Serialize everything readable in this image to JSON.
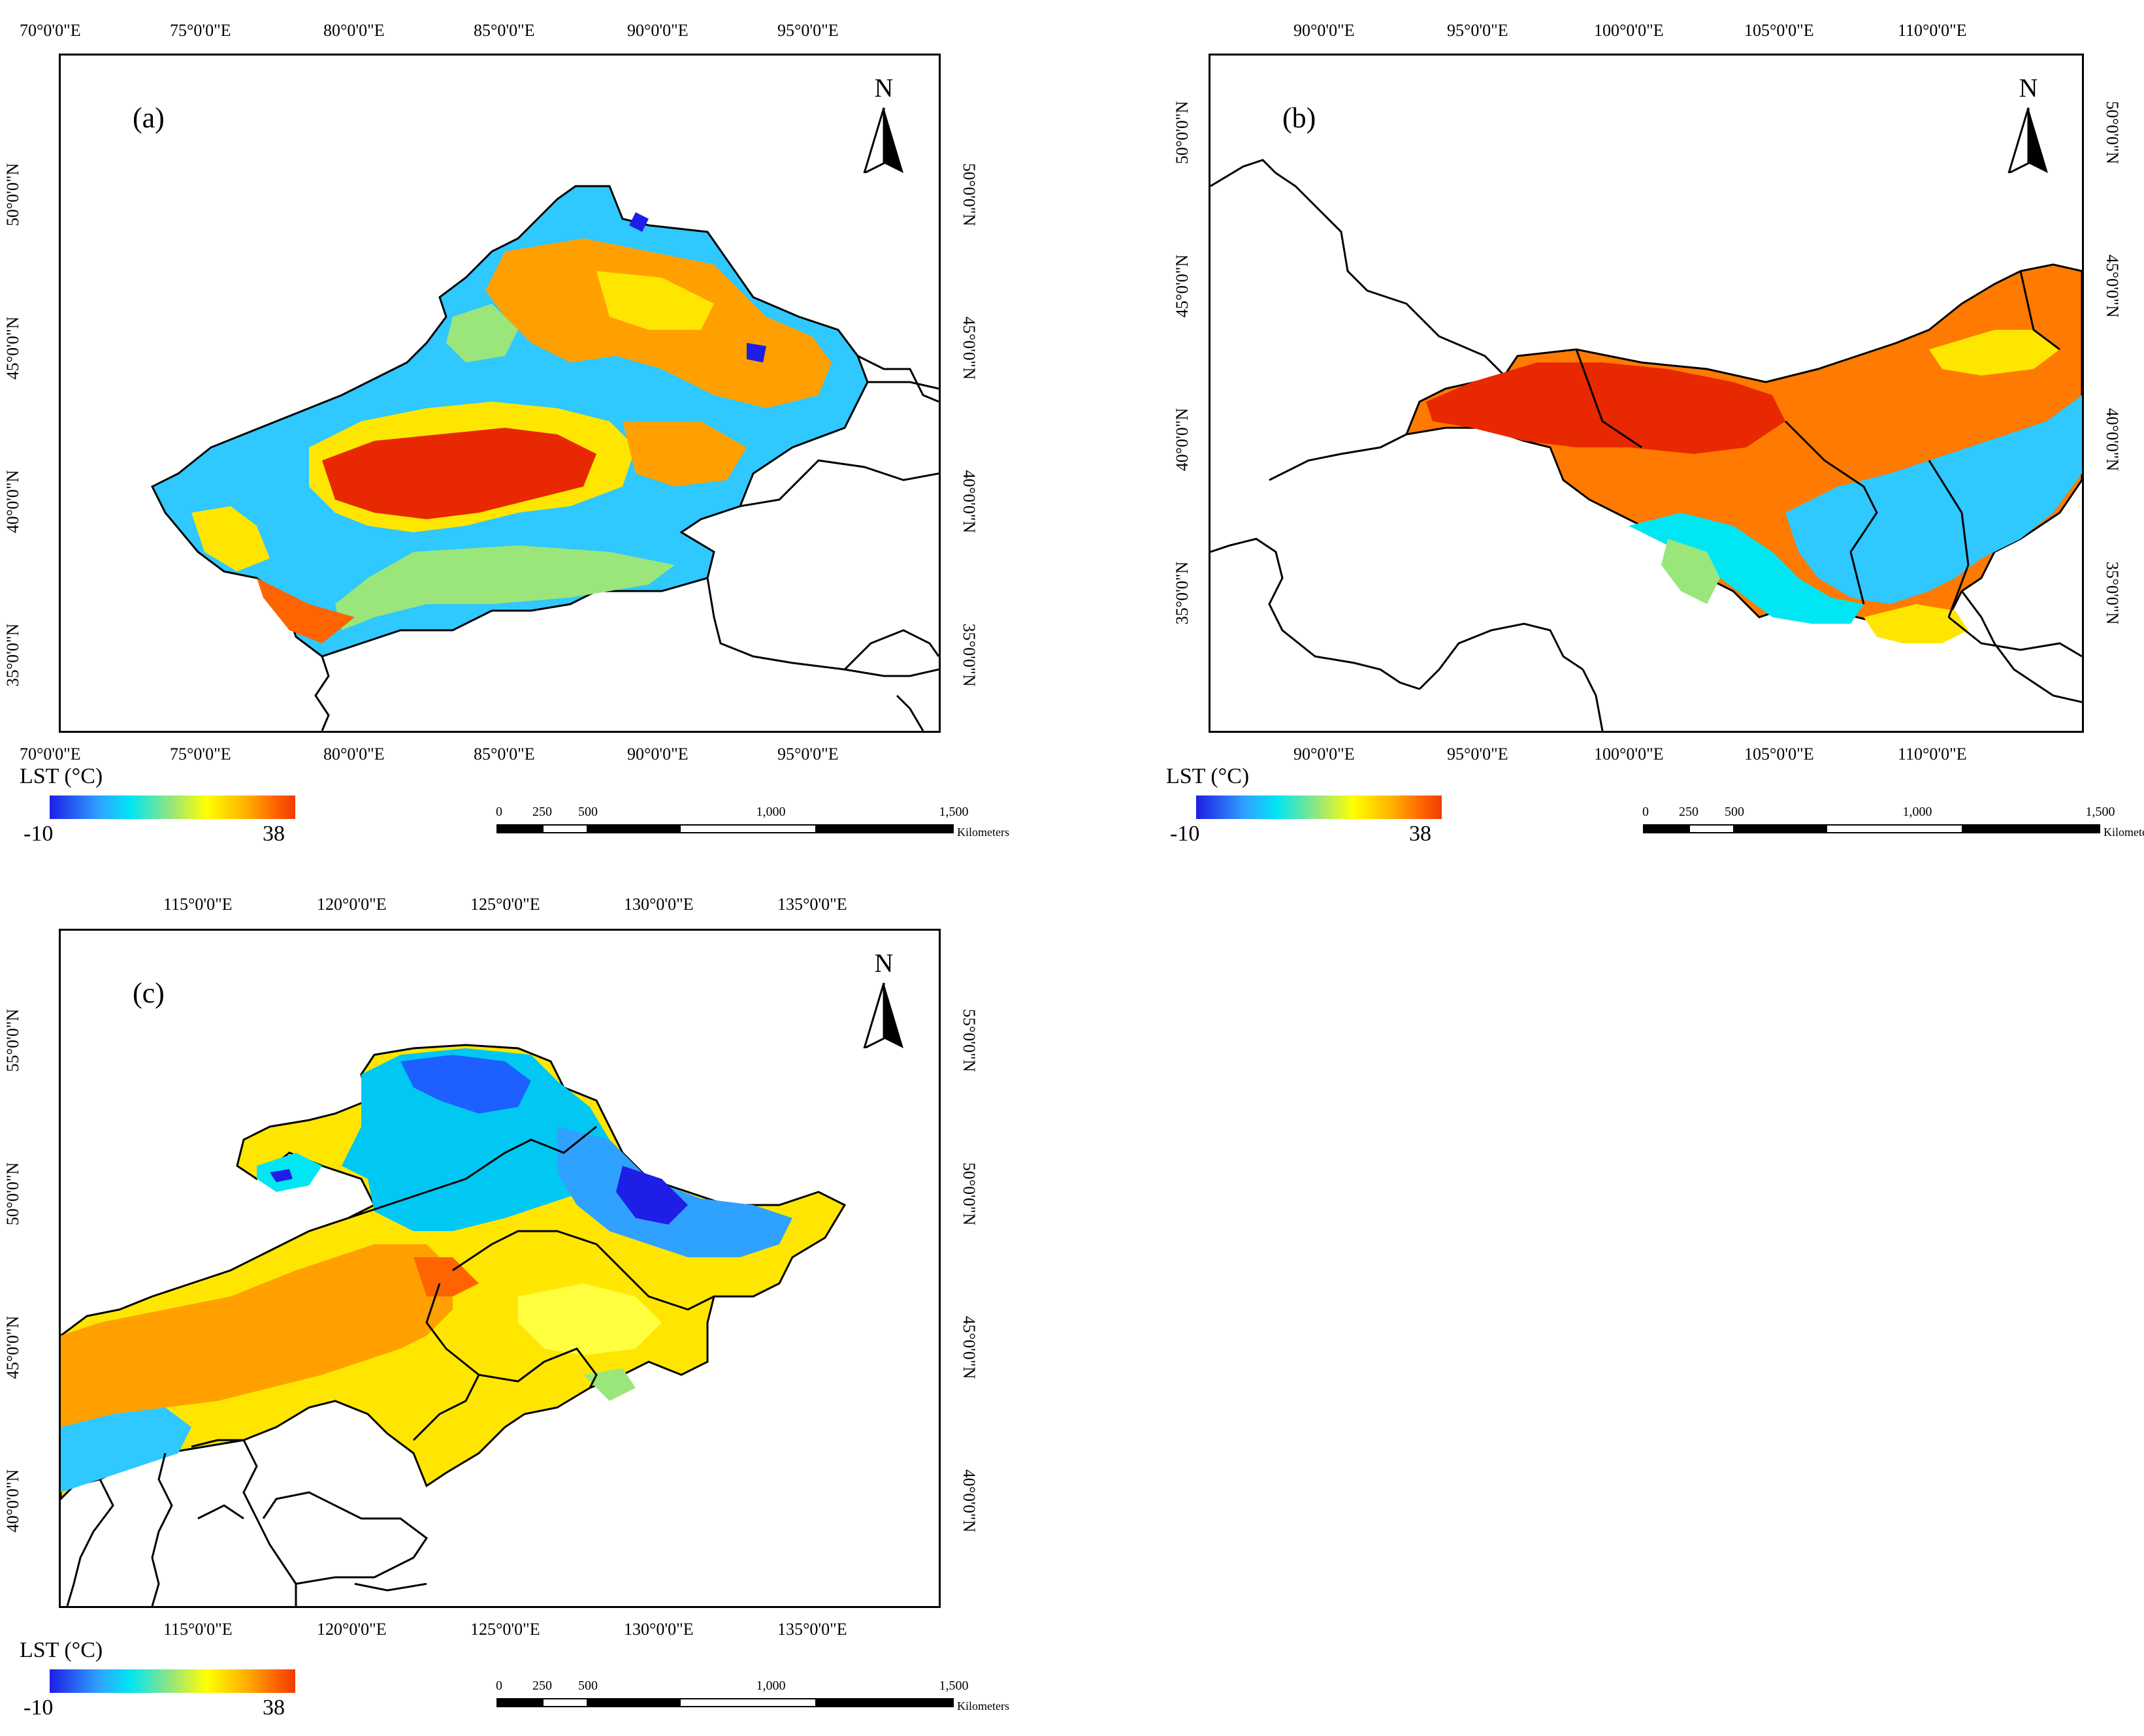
{
  "legend": {
    "title": "LST (°C)",
    "min": "-10",
    "max": "38",
    "colors": [
      "#1e1ee6",
      "#2fa2ff",
      "#00e6f2",
      "#9be67a",
      "#ffff00",
      "#ffb000",
      "#ff6400",
      "#f03c00"
    ]
  },
  "scalebar": {
    "ticks": [
      "0",
      "250",
      "500",
      "1,000",
      "1,500"
    ],
    "unit": "Kilometers"
  },
  "north": "N",
  "panels": {
    "a": {
      "label": "(a)",
      "top_ticks": [
        "70°0'0\"E",
        "75°0'0\"E",
        "80°0'0\"E",
        "85°0'0\"E",
        "90°0'0\"E",
        "95°0'0\"E"
      ],
      "bottom_ticks": [
        "70°0'0\"E",
        "75°0'0\"E",
        "80°0'0\"E",
        "85°0'0\"E",
        "90°0'0\"E",
        "95°0'0\"E"
      ],
      "left_ticks": [
        "50°0'0\"N",
        "45°0'0\"N",
        "40°0'0\"N",
        "35°0'0\"N"
      ],
      "right_ticks": [
        "50°0'0\"N",
        "45°0'0\"N",
        "40°0'0\"N",
        "35°0'0\"N"
      ]
    },
    "b": {
      "label": "(b)",
      "top_ticks": [
        "90°0'0\"E",
        "95°0'0\"E",
        "100°0'0\"E",
        "105°0'0\"E",
        "110°0'0\"E"
      ],
      "bottom_ticks": [
        "90°0'0\"E",
        "95°0'0\"E",
        "100°0'0\"E",
        "105°0'0\"E",
        "110°0'0\"E"
      ],
      "left_ticks": [
        "50°0'0\"N",
        "45°0'0\"N",
        "40°0'0\"N",
        "35°0'0\"N"
      ],
      "right_ticks": [
        "50°0'0\"N",
        "45°0'0\"N",
        "40°0'0\"N",
        "35°0'0\"N"
      ]
    },
    "c": {
      "label": "(c)",
      "top_ticks": [
        "115°0'0\"E",
        "120°0'0\"E",
        "125°0'0\"E",
        "130°0'0\"E",
        "135°0'0\"E"
      ],
      "bottom_ticks": [
        "115°0'0\"E",
        "120°0'0\"E",
        "125°0'0\"E",
        "130°0'0\"E",
        "135°0'0\"E"
      ],
      "left_ticks": [
        "55°0'0\"N",
        "50°0'0\"N",
        "45°0'0\"N",
        "40°0'0\"N"
      ],
      "right_ticks": [
        "55°0'0\"N",
        "50°0'0\"N",
        "45°0'0\"N",
        "40°0'0\"N"
      ]
    }
  }
}
